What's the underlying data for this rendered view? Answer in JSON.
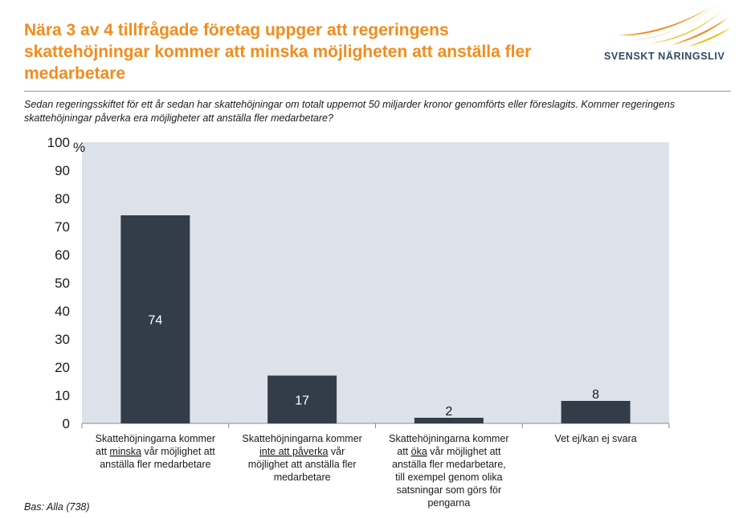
{
  "header": {
    "title": "Nära 3 av 4 tillfrågade företag uppger att regeringens skattehöjningar kommer att minska möjligheten att anställa fler medarbetare",
    "logo_text": "SVENSKT NÄRINGSLIV"
  },
  "subtitle": "Sedan regeringsskiftet för ett år sedan har skattehöjningar om totalt uppemot 50 miljarder kronor genomförts eller föreslagits. Kommer regeringens skattehöjningar påverka era möjligheter att anställa fler medarbetare?",
  "footnote": "Bas: Alla (738)",
  "colors": {
    "title": "#f28c1c",
    "bar": "#333d4a",
    "plot_bg": "#dde2ea",
    "logo_a": "#f28c1c",
    "logo_b": "#e8c21a",
    "logo_text": "#2d4a66"
  },
  "chart_data": {
    "type": "bar",
    "ylabel": "%",
    "ylim": [
      0,
      100
    ],
    "yticks": [
      "0",
      "10",
      "20",
      "30",
      "40",
      "50",
      "60",
      "70",
      "80",
      "90",
      "100"
    ],
    "categories": [
      {
        "lines": [
          "Skattehöjningarna kommer",
          "att ",
          "minska",
          " vår möjlighet att",
          "anställa fler medarbetare"
        ],
        "underline": "minska"
      },
      {
        "lines": [
          "Skattehöjningarna kommer",
          "inte att påverka",
          " vår",
          "möjlighet att anställa fler",
          "medarbetare"
        ],
        "underline": "inte att påverka"
      },
      {
        "lines": [
          "Skattehöjningarna kommer",
          "att ",
          "öka",
          " vår möjlighet att",
          "anställa fler medarbetare,",
          "till exempel genom olika",
          "satsningar som görs för",
          "pengarna"
        ],
        "underline": "öka"
      },
      {
        "lines": [
          "Vet ej/kan ej svara"
        ],
        "underline": ""
      }
    ],
    "category_labels": [
      "Skattehöjningarna kommer att minska vår möjlighet att anställa fler medarbetare",
      "Skattehöjningarna kommer inte att påverka vår möjlighet att anställa fler medarbetare",
      "Skattehöjningarna kommer att öka vår möjlighet att anställa fler medarbetare, till exempel genom olika satsningar som görs för pengarna",
      "Vet ej/kan ej svara"
    ],
    "values": [
      74,
      17,
      2,
      8
    ],
    "data_labels": [
      "74",
      "17",
      "2",
      "8"
    ]
  }
}
